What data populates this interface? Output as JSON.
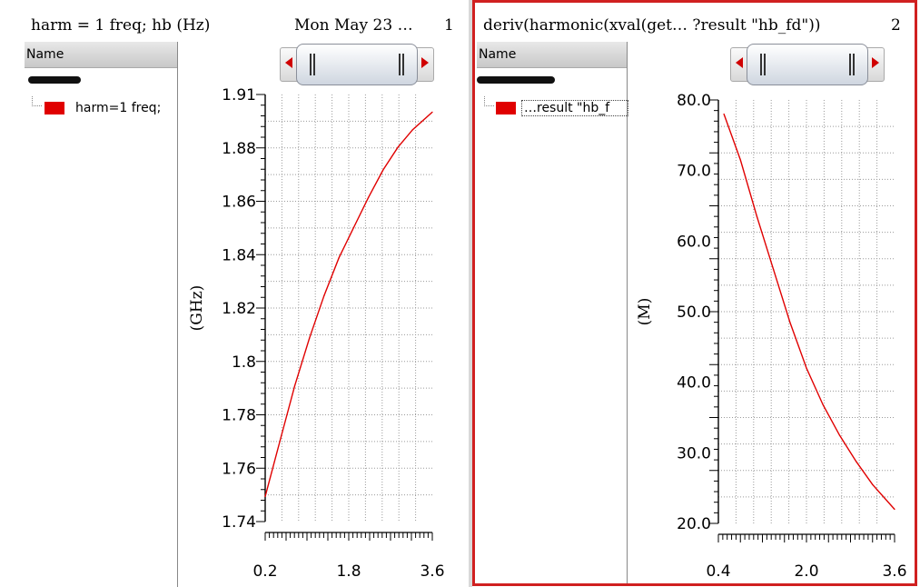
{
  "panel1": {
    "title": "harm = 1 freq; hb  (Hz)",
    "timestamp": "Mon May 23  …",
    "index": "1",
    "sidebar_header": "Name",
    "legend_label": "harm=1 freq;",
    "series_color": "#e00000"
  },
  "panel2": {
    "title": "deriv(harmonic(xval(get…  ?result \"hb_fd\"))",
    "index": "2",
    "sidebar_header": "Name",
    "legend_label": "…result \"hb_f",
    "series_color": "#e00000"
  },
  "chart_data": [
    {
      "type": "line",
      "title": "harm = 1 freq; hb  (Hz)",
      "ylabel": "(GHz)",
      "xlabel": "",
      "x_ticks": [
        "0.2",
        "1.8",
        "3.6"
      ],
      "y_ticks": [
        "1.74",
        "1.76",
        "1.78",
        "1.8",
        "1.82",
        "1.84",
        "1.86",
        "1.88",
        "1.91"
      ],
      "xlim": [
        0.2,
        3.6
      ],
      "ylim": [
        1.74,
        1.91
      ],
      "grid": true,
      "series": [
        {
          "name": "harm=1 freq;",
          "color": "#e00000",
          "x": [
            0.2,
            0.5,
            0.8,
            1.1,
            1.4,
            1.7,
            2.0,
            2.3,
            2.6,
            2.9,
            3.2,
            3.6
          ],
          "y": [
            1.75,
            1.772,
            1.794,
            1.813,
            1.83,
            1.845,
            1.857,
            1.869,
            1.88,
            1.889,
            1.896,
            1.903
          ]
        }
      ]
    },
    {
      "type": "line",
      "title": "deriv(harmonic(xval(get…  ?result \"hb_fd\"))",
      "ylabel": "(M)",
      "xlabel": "",
      "x_ticks": [
        "0.4",
        "2.0",
        "3.6"
      ],
      "y_ticks": [
        "20.0",
        "30.0",
        "40.0",
        "50.0",
        "60.0",
        "70.0",
        "80.0"
      ],
      "xlim": [
        0.4,
        3.6
      ],
      "ylim": [
        20,
        80
      ],
      "grid": true,
      "series": [
        {
          "name": "…result \"hb_f",
          "color": "#e00000",
          "x": [
            0.5,
            0.8,
            1.1,
            1.4,
            1.7,
            2.0,
            2.3,
            2.6,
            2.9,
            3.2,
            3.6
          ],
          "y": [
            78,
            71.5,
            63.5,
            56,
            48.5,
            42,
            36.8,
            32.5,
            28.8,
            25.5,
            22
          ]
        }
      ]
    }
  ]
}
